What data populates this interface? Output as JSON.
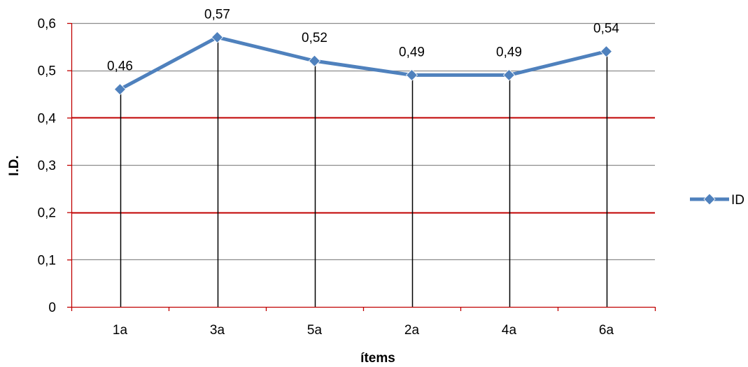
{
  "chart_data": {
    "type": "line",
    "title": "",
    "xlabel": "ítems",
    "ylabel": "I.D.",
    "categories": [
      "1a",
      "3a",
      "5a",
      "2a",
      "4a",
      "6a"
    ],
    "series": [
      {
        "name": "ID",
        "values": [
          0.46,
          0.57,
          0.52,
          0.49,
          0.49,
          0.54
        ],
        "labels": [
          "0,46",
          "0,57",
          "0,52",
          "0,49",
          "0,49",
          "0,54"
        ],
        "color": "#4f81bd"
      }
    ],
    "ylim": [
      0,
      0.6
    ],
    "yticks": [
      {
        "value": 0,
        "label": "0"
      },
      {
        "value": 0.1,
        "label": "0,1"
      },
      {
        "value": 0.2,
        "label": "0,2"
      },
      {
        "value": 0.3,
        "label": "0,3"
      },
      {
        "value": 0.4,
        "label": "0,4"
      },
      {
        "value": 0.5,
        "label": "0,5"
      },
      {
        "value": 0.6,
        "label": "0,6"
      }
    ],
    "highlight_lines": [
      0.2,
      0.4
    ],
    "colors": {
      "gridline": "#8c8c8c",
      "highlight": "#c00000",
      "axis": "#c00000",
      "drop_line": "#000000"
    },
    "grid": true,
    "legend": "right"
  }
}
